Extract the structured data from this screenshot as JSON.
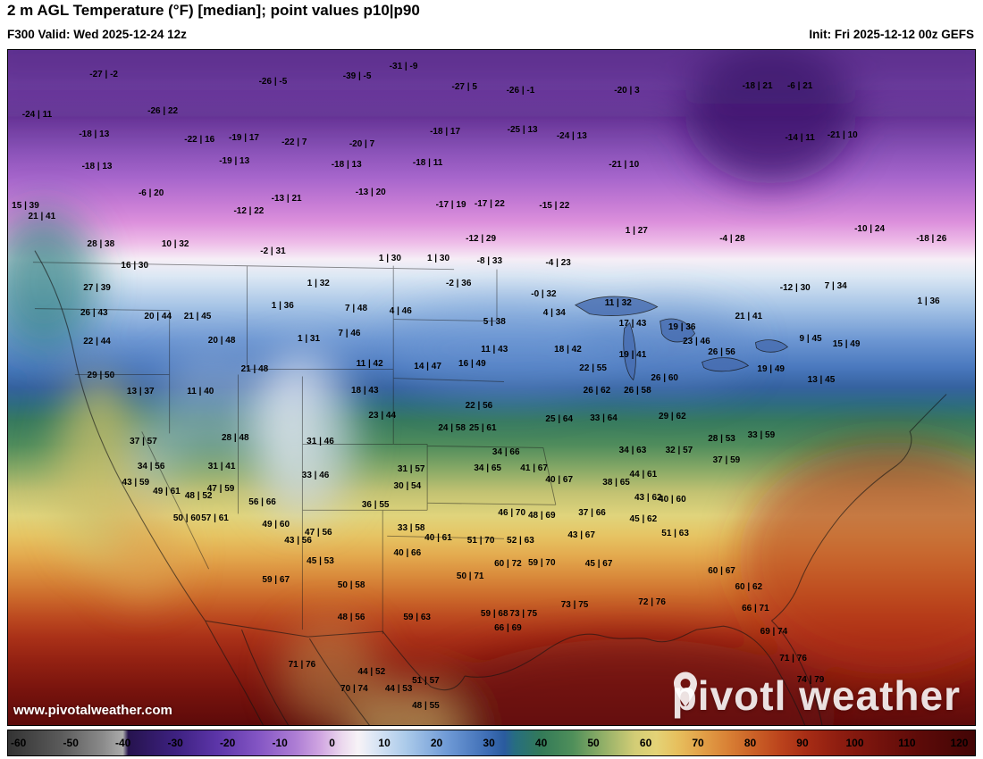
{
  "header": {
    "title": "2 m AGL Temperature (°F) [median]; point values p10|p90",
    "valid": "F300 Valid: Wed 2025-12-24 12z",
    "init": "Init: Fri 2025-12-12 00z GEFS"
  },
  "map": {
    "watermark_p1": "pivot",
    "watermark_p2": "l weather",
    "site_url": "www.pivotalweather.com",
    "points": [
      {
        "x": 9.9,
        "y": 3.7,
        "v": "-27 | -2"
      },
      {
        "x": 27.4,
        "y": 4.8,
        "v": "-26 | -5"
      },
      {
        "x": 36.1,
        "y": 4.0,
        "v": "-39 | -5"
      },
      {
        "x": 40.9,
        "y": 2.5,
        "v": "-31 | -9"
      },
      {
        "x": 47.2,
        "y": 5.5,
        "v": "-27 | 5"
      },
      {
        "x": 53.0,
        "y": 6.1,
        "v": "-26 | -1"
      },
      {
        "x": 64.0,
        "y": 6.1,
        "v": "-20 | 3"
      },
      {
        "x": 77.5,
        "y": 5.4,
        "v": "-18 | 21"
      },
      {
        "x": 81.9,
        "y": 5.4,
        "v": "-6 | 21"
      },
      {
        "x": 3.0,
        "y": 9.6,
        "v": "-24 | 11"
      },
      {
        "x": 16.0,
        "y": 9.1,
        "v": "-26 | 22"
      },
      {
        "x": 8.9,
        "y": 12.5,
        "v": "-18 | 13"
      },
      {
        "x": 19.8,
        "y": 13.3,
        "v": "-22 | 16"
      },
      {
        "x": 24.4,
        "y": 13.1,
        "v": "-19 | 17"
      },
      {
        "x": 29.6,
        "y": 13.7,
        "v": "-22 | 7"
      },
      {
        "x": 36.6,
        "y": 14.0,
        "v": "-20 | 7"
      },
      {
        "x": 45.2,
        "y": 12.2,
        "v": "-18 | 17"
      },
      {
        "x": 53.2,
        "y": 11.9,
        "v": "-25 | 13"
      },
      {
        "x": 58.3,
        "y": 12.8,
        "v": "-24 | 13"
      },
      {
        "x": 81.9,
        "y": 13.1,
        "v": "-14 | 11"
      },
      {
        "x": 86.3,
        "y": 12.7,
        "v": "-21 | 10"
      },
      {
        "x": 9.2,
        "y": 17.3,
        "v": "-18 | 13"
      },
      {
        "x": 23.4,
        "y": 16.6,
        "v": "-19 | 13"
      },
      {
        "x": 35.0,
        "y": 17.0,
        "v": "-18 | 13"
      },
      {
        "x": 43.4,
        "y": 16.8,
        "v": "-18 | 11"
      },
      {
        "x": 63.7,
        "y": 17.0,
        "v": "-21 | 10"
      },
      {
        "x": 14.8,
        "y": 21.3,
        "v": "-6 | 20"
      },
      {
        "x": 24.9,
        "y": 23.9,
        "v": "-12 | 22"
      },
      {
        "x": 28.8,
        "y": 22.1,
        "v": "-13 | 21"
      },
      {
        "x": 37.5,
        "y": 21.1,
        "v": "-13 | 20"
      },
      {
        "x": 45.8,
        "y": 23.0,
        "v": "-17 | 19"
      },
      {
        "x": 49.8,
        "y": 22.9,
        "v": "-17 | 22"
      },
      {
        "x": 56.5,
        "y": 23.2,
        "v": "-15 | 22"
      },
      {
        "x": 1.8,
        "y": 23.1,
        "v": "15 | 39"
      },
      {
        "x": 3.5,
        "y": 24.8,
        "v": "21 | 41"
      },
      {
        "x": 89.1,
        "y": 26.6,
        "v": "-10 | 24"
      },
      {
        "x": 9.6,
        "y": 28.8,
        "v": "28 | 38"
      },
      {
        "x": 17.3,
        "y": 28.8,
        "v": "10 | 32"
      },
      {
        "x": 27.4,
        "y": 29.9,
        "v": "-2 | 31"
      },
      {
        "x": 39.5,
        "y": 31.0,
        "v": "1 | 30"
      },
      {
        "x": 44.5,
        "y": 31.0,
        "v": "1 | 30"
      },
      {
        "x": 48.9,
        "y": 28.1,
        "v": "-12 | 29"
      },
      {
        "x": 49.8,
        "y": 31.3,
        "v": "-8 | 33"
      },
      {
        "x": 56.9,
        "y": 31.6,
        "v": "-4 | 23"
      },
      {
        "x": 65.0,
        "y": 26.8,
        "v": "1 | 27"
      },
      {
        "x": 74.9,
        "y": 28.1,
        "v": "-4 | 28"
      },
      {
        "x": 95.5,
        "y": 28.1,
        "v": "-18 | 26"
      },
      {
        "x": 13.1,
        "y": 32.0,
        "v": "16 | 30"
      },
      {
        "x": 9.2,
        "y": 35.3,
        "v": "27 | 39"
      },
      {
        "x": 32.1,
        "y": 34.7,
        "v": "1 | 32"
      },
      {
        "x": 28.4,
        "y": 37.9,
        "v": "1 | 36"
      },
      {
        "x": 46.6,
        "y": 34.7,
        "v": "-2 | 36"
      },
      {
        "x": 55.4,
        "y": 36.3,
        "v": "-0 | 32"
      },
      {
        "x": 63.1,
        "y": 37.5,
        "v": "11 | 32"
      },
      {
        "x": 81.4,
        "y": 35.3,
        "v": "-12 | 30"
      },
      {
        "x": 85.6,
        "y": 35.0,
        "v": "7 | 34"
      },
      {
        "x": 95.2,
        "y": 37.3,
        "v": "1 | 36"
      },
      {
        "x": 8.9,
        "y": 39.0,
        "v": "26 | 43"
      },
      {
        "x": 15.5,
        "y": 39.6,
        "v": "20 | 44"
      },
      {
        "x": 19.6,
        "y": 39.6,
        "v": "21 | 45"
      },
      {
        "x": 9.2,
        "y": 43.2,
        "v": "22 | 44"
      },
      {
        "x": 22.1,
        "y": 43.1,
        "v": "20 | 48"
      },
      {
        "x": 36.0,
        "y": 38.3,
        "v": "7 | 48"
      },
      {
        "x": 40.6,
        "y": 38.7,
        "v": "4 | 46"
      },
      {
        "x": 31.1,
        "y": 42.9,
        "v": "1 | 31"
      },
      {
        "x": 35.3,
        "y": 42.1,
        "v": "7 | 46"
      },
      {
        "x": 50.3,
        "y": 40.3,
        "v": "5 | 38"
      },
      {
        "x": 56.5,
        "y": 39.0,
        "v": "4 | 34"
      },
      {
        "x": 69.7,
        "y": 41.1,
        "v": "19 | 36"
      },
      {
        "x": 76.6,
        "y": 39.5,
        "v": "21 | 41"
      },
      {
        "x": 25.5,
        "y": 47.4,
        "v": "21 | 48"
      },
      {
        "x": 37.4,
        "y": 46.5,
        "v": "11 | 42"
      },
      {
        "x": 43.4,
        "y": 46.9,
        "v": "14 | 47"
      },
      {
        "x": 48.0,
        "y": 46.5,
        "v": "16 | 49"
      },
      {
        "x": 50.3,
        "y": 44.5,
        "v": "11 | 43"
      },
      {
        "x": 57.9,
        "y": 44.5,
        "v": "18 | 42"
      },
      {
        "x": 64.6,
        "y": 40.6,
        "v": "17 | 43"
      },
      {
        "x": 60.5,
        "y": 47.2,
        "v": "22 | 55"
      },
      {
        "x": 64.6,
        "y": 45.3,
        "v": "19 | 41"
      },
      {
        "x": 71.2,
        "y": 43.2,
        "v": "23 | 46"
      },
      {
        "x": 73.8,
        "y": 44.9,
        "v": "26 | 56"
      },
      {
        "x": 78.9,
        "y": 47.3,
        "v": "19 | 49"
      },
      {
        "x": 83.0,
        "y": 42.9,
        "v": "9 | 45"
      },
      {
        "x": 86.7,
        "y": 43.7,
        "v": "15 | 49"
      },
      {
        "x": 84.1,
        "y": 48.9,
        "v": "13 | 45"
      },
      {
        "x": 9.6,
        "y": 48.3,
        "v": "29 | 50"
      },
      {
        "x": 13.7,
        "y": 50.7,
        "v": "13 | 37"
      },
      {
        "x": 19.9,
        "y": 50.7,
        "v": "11 | 40"
      },
      {
        "x": 36.9,
        "y": 50.5,
        "v": "18 | 43"
      },
      {
        "x": 38.7,
        "y": 54.2,
        "v": "23 | 44"
      },
      {
        "x": 48.7,
        "y": 52.8,
        "v": "22 | 56"
      },
      {
        "x": 60.9,
        "y": 50.5,
        "v": "26 | 62"
      },
      {
        "x": 65.1,
        "y": 50.5,
        "v": "26 | 58"
      },
      {
        "x": 67.9,
        "y": 48.7,
        "v": "26 | 60"
      },
      {
        "x": 57.0,
        "y": 54.8,
        "v": "25 | 64"
      },
      {
        "x": 49.1,
        "y": 56.1,
        "v": "25 | 61"
      },
      {
        "x": 45.9,
        "y": 56.1,
        "v": "24 | 58"
      },
      {
        "x": 68.7,
        "y": 54.3,
        "v": "29 | 62"
      },
      {
        "x": 61.6,
        "y": 54.6,
        "v": "33 | 64"
      },
      {
        "x": 73.8,
        "y": 57.7,
        "v": "28 | 53"
      },
      {
        "x": 77.9,
        "y": 57.2,
        "v": "33 | 59"
      },
      {
        "x": 23.5,
        "y": 57.6,
        "v": "28 | 48"
      },
      {
        "x": 14.0,
        "y": 58.1,
        "v": "37 | 57"
      },
      {
        "x": 32.3,
        "y": 58.1,
        "v": "31 | 46"
      },
      {
        "x": 14.8,
        "y": 61.8,
        "v": "34 | 56"
      },
      {
        "x": 13.2,
        "y": 64.2,
        "v": "43 | 59"
      },
      {
        "x": 22.1,
        "y": 61.8,
        "v": "31 | 41"
      },
      {
        "x": 31.8,
        "y": 63.1,
        "v": "33 | 46"
      },
      {
        "x": 41.7,
        "y": 62.2,
        "v": "31 | 57"
      },
      {
        "x": 41.3,
        "y": 64.7,
        "v": "30 | 54"
      },
      {
        "x": 51.5,
        "y": 59.7,
        "v": "34 | 66"
      },
      {
        "x": 49.6,
        "y": 62.0,
        "v": "34 | 65"
      },
      {
        "x": 54.4,
        "y": 62.0,
        "v": "41 | 67"
      },
      {
        "x": 57.0,
        "y": 63.8,
        "v": "40 | 67"
      },
      {
        "x": 64.6,
        "y": 59.4,
        "v": "34 | 63"
      },
      {
        "x": 69.4,
        "y": 59.4,
        "v": "32 | 57"
      },
      {
        "x": 62.9,
        "y": 64.1,
        "v": "38 | 65"
      },
      {
        "x": 65.7,
        "y": 63.0,
        "v": "44 | 61"
      },
      {
        "x": 74.3,
        "y": 60.8,
        "v": "37 | 59"
      },
      {
        "x": 16.4,
        "y": 65.5,
        "v": "49 | 61"
      },
      {
        "x": 19.7,
        "y": 66.2,
        "v": "48 | 52"
      },
      {
        "x": 22.0,
        "y": 65.1,
        "v": "47 | 59"
      },
      {
        "x": 26.3,
        "y": 67.1,
        "v": "56 | 66"
      },
      {
        "x": 38.0,
        "y": 67.5,
        "v": "36 | 55"
      },
      {
        "x": 41.7,
        "y": 70.9,
        "v": "33 | 58"
      },
      {
        "x": 52.1,
        "y": 68.7,
        "v": "46 | 70"
      },
      {
        "x": 55.2,
        "y": 69.1,
        "v": "48 | 69"
      },
      {
        "x": 66.2,
        "y": 66.4,
        "v": "43 | 62"
      },
      {
        "x": 68.7,
        "y": 66.7,
        "v": "40 | 60"
      },
      {
        "x": 65.7,
        "y": 69.6,
        "v": "45 | 62"
      },
      {
        "x": 69.0,
        "y": 71.7,
        "v": "51 | 63"
      },
      {
        "x": 60.4,
        "y": 68.7,
        "v": "37 | 66"
      },
      {
        "x": 59.3,
        "y": 72.0,
        "v": "43 | 67"
      },
      {
        "x": 18.5,
        "y": 69.4,
        "v": "50 | 60"
      },
      {
        "x": 21.4,
        "y": 69.4,
        "v": "57 | 61"
      },
      {
        "x": 27.7,
        "y": 70.4,
        "v": "49 | 60"
      },
      {
        "x": 32.1,
        "y": 71.6,
        "v": "47 | 56"
      },
      {
        "x": 30.0,
        "y": 72.8,
        "v": "43 | 56"
      },
      {
        "x": 48.9,
        "y": 72.8,
        "v": "51 | 70"
      },
      {
        "x": 53.0,
        "y": 72.8,
        "v": "52 | 63"
      },
      {
        "x": 41.3,
        "y": 74.6,
        "v": "40 | 66"
      },
      {
        "x": 44.5,
        "y": 72.3,
        "v": "40 | 61"
      },
      {
        "x": 32.3,
        "y": 75.8,
        "v": "45 | 53"
      },
      {
        "x": 27.7,
        "y": 78.6,
        "v": "59 | 67"
      },
      {
        "x": 35.5,
        "y": 79.3,
        "v": "50 | 58"
      },
      {
        "x": 51.7,
        "y": 76.2,
        "v": "60 | 72"
      },
      {
        "x": 55.2,
        "y": 76.0,
        "v": "59 | 70"
      },
      {
        "x": 61.1,
        "y": 76.2,
        "v": "45 | 67"
      },
      {
        "x": 73.8,
        "y": 77.3,
        "v": "60 | 67"
      },
      {
        "x": 76.6,
        "y": 79.6,
        "v": "60 | 62"
      },
      {
        "x": 47.8,
        "y": 78.1,
        "v": "50 | 71"
      },
      {
        "x": 53.3,
        "y": 83.6,
        "v": "73 | 75"
      },
      {
        "x": 58.6,
        "y": 82.3,
        "v": "73 | 75"
      },
      {
        "x": 66.6,
        "y": 81.9,
        "v": "72 | 76"
      },
      {
        "x": 77.3,
        "y": 82.8,
        "v": "66 | 71"
      },
      {
        "x": 79.2,
        "y": 86.3,
        "v": "69 | 74"
      },
      {
        "x": 81.2,
        "y": 90.2,
        "v": "71 | 76"
      },
      {
        "x": 35.5,
        "y": 84.1,
        "v": "48 | 56"
      },
      {
        "x": 42.3,
        "y": 84.1,
        "v": "59 | 63"
      },
      {
        "x": 50.3,
        "y": 83.6,
        "v": "59 | 68"
      },
      {
        "x": 51.7,
        "y": 85.7,
        "v": "66 | 69"
      },
      {
        "x": 30.4,
        "y": 91.1,
        "v": "71 | 76"
      },
      {
        "x": 35.8,
        "y": 94.7,
        "v": "70 | 74"
      },
      {
        "x": 37.6,
        "y": 92.2,
        "v": "44 | 52"
      },
      {
        "x": 40.4,
        "y": 94.7,
        "v": "44 | 53"
      },
      {
        "x": 43.2,
        "y": 93.5,
        "v": "51 | 57"
      },
      {
        "x": 43.2,
        "y": 97.2,
        "v": "48 | 55"
      },
      {
        "x": 83.0,
        "y": 93.4,
        "v": "74 | 79"
      }
    ]
  },
  "colorbar": {
    "min": -62,
    "max": 123,
    "ticks": [
      -60,
      -50,
      -40,
      -30,
      -20,
      -10,
      0,
      10,
      20,
      30,
      40,
      50,
      60,
      70,
      80,
      90,
      100,
      110,
      120
    ],
    "stops": [
      {
        "t": -62,
        "c": "#333333"
      },
      {
        "t": -52,
        "c": "#5a5a5a"
      },
      {
        "t": -44,
        "c": "#8a8a8a"
      },
      {
        "t": -40,
        "c": "#ababab"
      },
      {
        "t": -39,
        "c": "#26134e"
      },
      {
        "t": -30,
        "c": "#3d2180"
      },
      {
        "t": -22,
        "c": "#5c35a8"
      },
      {
        "t": -14,
        "c": "#8456c4"
      },
      {
        "t": -7,
        "c": "#ad7dd4"
      },
      {
        "t": -2,
        "c": "#d2a8e2"
      },
      {
        "t": 2,
        "c": "#ecd9ee"
      },
      {
        "t": 5,
        "c": "#f7f3f7"
      },
      {
        "t": 8,
        "c": "#dde7f5"
      },
      {
        "t": 14,
        "c": "#accbea"
      },
      {
        "t": 22,
        "c": "#6f9ad6"
      },
      {
        "t": 30,
        "c": "#3c6cb4"
      },
      {
        "t": 33,
        "c": "#2a5b9e"
      },
      {
        "t": 35,
        "c": "#276e80"
      },
      {
        "t": 40,
        "c": "#337a58"
      },
      {
        "t": 46,
        "c": "#4f8f5a"
      },
      {
        "t": 52,
        "c": "#93b068"
      },
      {
        "t": 58,
        "c": "#d3cd76"
      },
      {
        "t": 62,
        "c": "#e4d377"
      },
      {
        "t": 66,
        "c": "#e7c05e"
      },
      {
        "t": 71,
        "c": "#e29f47"
      },
      {
        "t": 76,
        "c": "#d87f34"
      },
      {
        "t": 81,
        "c": "#ca5f26"
      },
      {
        "t": 86,
        "c": "#ba421c"
      },
      {
        "t": 91,
        "c": "#a62c15"
      },
      {
        "t": 97,
        "c": "#8e1d10"
      },
      {
        "t": 105,
        "c": "#73120c"
      },
      {
        "t": 113,
        "c": "#5b0a08"
      },
      {
        "t": 123,
        "c": "#420505"
      }
    ]
  }
}
